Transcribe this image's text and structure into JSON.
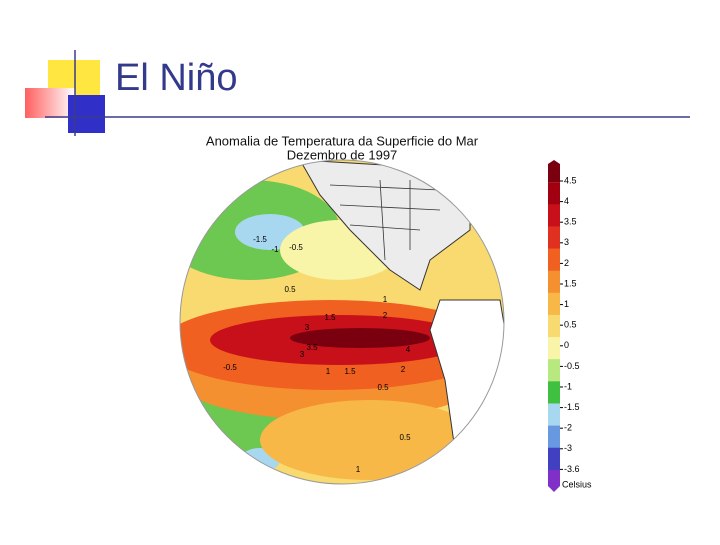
{
  "slide": {
    "title": "El Niño"
  },
  "map": {
    "title": [
      "Anomalia de Temperatura da Superficie do Mar",
      "Dezembro de 1997"
    ],
    "contour_labels": [
      "-1.5",
      "-1",
      "-0.5",
      "0.5",
      "1",
      "1.5",
      "2",
      "3",
      "3.5",
      "4",
      "3",
      "2",
      "1.5",
      "1",
      "0.5",
      "-0.5",
      "0.5",
      "1"
    ]
  },
  "colorbar": {
    "labels": [
      "4.5",
      "4",
      "3.5",
      "3",
      "2",
      "1.5",
      "1",
      "0.5",
      "0",
      "-0.5",
      "-1",
      "-1.5",
      "-2",
      "-3",
      "-3.6"
    ],
    "unit": "Celsius",
    "colors": [
      "#7a0010",
      "#a00010",
      "#c8101a",
      "#e03020",
      "#f06020",
      "#f59030",
      "#f8b848",
      "#f8da70",
      "#f8f4a8",
      "#b8e880",
      "#40c040",
      "#a8d8f0",
      "#6898e0",
      "#4040c0",
      "#8030c8"
    ]
  }
}
